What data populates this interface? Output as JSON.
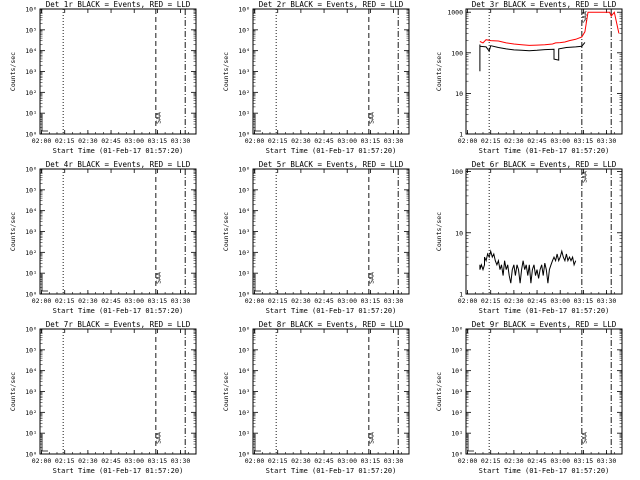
{
  "chart_data": [
    {
      "type": "line",
      "title": "Det 1r BLACK = Events, RED = LLD",
      "xlabel": "Start Time (01-Feb-17 01:57:20)",
      "ylabel": "Counts/sec",
      "log_y": true,
      "xlim": [
        "01:59",
        "03:40"
      ],
      "ylim": [
        1,
        1000000
      ],
      "x_ticks": [
        "02:00",
        "02:15",
        "02:30",
        "02:45",
        "03:00",
        "03:15",
        "03:30"
      ],
      "y_ticks": [
        "10⁰",
        "10¹",
        "10²",
        "10³",
        "10⁴",
        "10⁵",
        "10⁶"
      ],
      "markers": [
        {
          "x": "02:14",
          "style": "dotted"
        },
        {
          "x": "03:14",
          "style": "dashed"
        },
        {
          "x": "03:33",
          "style": "dash-dot"
        }
      ],
      "annotation": {
        "text": "SAA",
        "x": "03:15"
      },
      "series": []
    },
    {
      "type": "line",
      "title": "Det 2r BLACK = Events, RED = LLD",
      "xlabel": "Start Time (01-Feb-17 01:57:20)",
      "ylabel": "Counts/sec",
      "log_y": true,
      "xlim": [
        "01:59",
        "03:40"
      ],
      "ylim": [
        1,
        1000000
      ],
      "x_ticks": [
        "02:00",
        "02:15",
        "02:30",
        "02:45",
        "03:00",
        "03:15",
        "03:30"
      ],
      "y_ticks": [
        "10⁰",
        "10¹",
        "10²",
        "10³",
        "10⁴",
        "10⁵",
        "10⁶"
      ],
      "markers": [
        {
          "x": "02:14",
          "style": "dotted"
        },
        {
          "x": "03:14",
          "style": "dashed"
        },
        {
          "x": "03:33",
          "style": "dash-dot"
        }
      ],
      "annotation": {
        "text": "SAA",
        "x": "03:15"
      },
      "series": []
    },
    {
      "type": "line",
      "title": "Det 3r BLACK = Events, RED = LLD",
      "xlabel": "Start Time (01-Feb-17 01:57:20)",
      "ylabel": "Counts/sec",
      "log_y": true,
      "xlim": [
        "01:59",
        "03:40"
      ],
      "ylim": [
        1,
        1200
      ],
      "x_ticks": [
        "02:00",
        "02:15",
        "02:30",
        "02:45",
        "03:00",
        "03:15",
        "03:30"
      ],
      "y_ticks": [
        "1",
        "10",
        "100",
        "1000"
      ],
      "markers": [
        {
          "x": "02:14",
          "style": "dotted"
        },
        {
          "x": "03:14",
          "style": "dash-dot"
        },
        {
          "x": "03:33",
          "style": "dash-dot"
        }
      ],
      "annotation": {
        "text": "SAA",
        "x": "03:15"
      },
      "series": [
        {
          "color": "#ff0000",
          "points": [
            [
              "02:08",
              190
            ],
            [
              "02:10",
              175
            ],
            [
              "02:12",
              210
            ],
            [
              "02:15",
              200
            ],
            [
              "02:20",
              195
            ],
            [
              "02:25",
              175
            ],
            [
              "02:30",
              165
            ],
            [
              "02:35",
              158
            ],
            [
              "02:40",
              152
            ],
            [
              "02:45",
              155
            ],
            [
              "02:50",
              158
            ],
            [
              "02:55",
              165
            ],
            [
              "02:57",
              175
            ],
            [
              "03:00",
              178
            ],
            [
              "03:03",
              185
            ],
            [
              "03:06",
              200
            ],
            [
              "03:10",
              215
            ],
            [
              "03:14",
              245
            ],
            [
              "03:16",
              330
            ],
            [
              "03:18",
              1000
            ],
            [
              "03:25",
              1000
            ],
            [
              "03:28",
              1000
            ],
            [
              "03:32",
              1000
            ],
            [
              "03:33",
              800
            ],
            [
              "03:35",
              1000
            ],
            [
              "03:38",
              300
            ]
          ]
        },
        {
          "color": "#000000",
          "points": [
            [
              "02:08",
              160
            ],
            [
              "02:08",
              35
            ],
            [
              "02:08",
              145
            ],
            [
              "02:12",
              140
            ],
            [
              "02:13",
              125
            ],
            [
              "02:14",
              110
            ],
            [
              "02:15",
              150
            ],
            [
              "02:20",
              135
            ],
            [
              "02:25",
              125
            ],
            [
              "02:30",
              118
            ],
            [
              "02:35",
              115
            ],
            [
              "02:40",
              113
            ],
            [
              "02:45",
              115
            ],
            [
              "02:50",
              120
            ],
            [
              "02:56",
              122
            ],
            [
              "02:56",
              70
            ],
            [
              "02:59",
              66
            ],
            [
              "02:59",
              125
            ],
            [
              "03:04",
              135
            ],
            [
              "03:10",
              140
            ],
            [
              "03:14",
              145
            ],
            [
              "03:16",
              180
            ]
          ]
        }
      ]
    },
    {
      "type": "line",
      "title": "Det 4r BLACK = Events, RED = LLD",
      "xlabel": "Start Time (01-Feb-17 01:57:20)",
      "ylabel": "Counts/sec",
      "log_y": true,
      "xlim": [
        "01:59",
        "03:40"
      ],
      "ylim": [
        1,
        1000000
      ],
      "x_ticks": [
        "02:00",
        "02:15",
        "02:30",
        "02:45",
        "03:00",
        "03:15",
        "03:30"
      ],
      "y_ticks": [
        "10⁰",
        "10¹",
        "10²",
        "10³",
        "10⁴",
        "10⁵",
        "10⁶"
      ],
      "markers": [
        {
          "x": "02:14",
          "style": "dotted"
        },
        {
          "x": "03:14",
          "style": "dashed"
        },
        {
          "x": "03:33",
          "style": "dash-dot"
        }
      ],
      "annotation": {
        "text": "SAA",
        "x": "03:15"
      },
      "series": []
    },
    {
      "type": "line",
      "title": "Det 5r BLACK = Events, RED = LLD",
      "xlabel": "Start Time (01-Feb-17 01:57:20)",
      "ylabel": "Counts/sec",
      "log_y": true,
      "xlim": [
        "01:59",
        "03:40"
      ],
      "ylim": [
        1,
        1000000
      ],
      "x_ticks": [
        "02:00",
        "02:15",
        "02:30",
        "02:45",
        "03:00",
        "03:15",
        "03:30"
      ],
      "y_ticks": [
        "10⁰",
        "10¹",
        "10²",
        "10³",
        "10⁴",
        "10⁵",
        "10⁶"
      ],
      "markers": [
        {
          "x": "02:14",
          "style": "dotted"
        },
        {
          "x": "03:14",
          "style": "dashed"
        },
        {
          "x": "03:33",
          "style": "dash-dot"
        }
      ],
      "annotation": {
        "text": "SAA",
        "x": "03:15"
      },
      "series": []
    },
    {
      "type": "line",
      "title": "Det 6r BLACK = Events, RED = LLD",
      "xlabel": "Start Time (01-Feb-17 01:57:20)",
      "ylabel": "Counts/sec",
      "log_y": true,
      "xlim": [
        "01:59",
        "03:40"
      ],
      "ylim": [
        1,
        110
      ],
      "x_ticks": [
        "02:00",
        "02:15",
        "02:30",
        "02:45",
        "03:00",
        "03:15",
        "03:30"
      ],
      "y_ticks": [
        "1",
        "10",
        "100"
      ],
      "markers": [
        {
          "x": "02:14",
          "style": "dotted"
        },
        {
          "x": "03:14",
          "style": "dash-dot"
        },
        {
          "x": "03:33",
          "style": "dash-dot"
        }
      ],
      "annotation": {
        "text": "SAA",
        "x": "03:15"
      },
      "series": [
        {
          "color": "#000000",
          "points": [
            [
              "02:08",
              3
            ],
            [
              "02:08",
              2.5
            ],
            [
              "02:09",
              3
            ],
            [
              "02:10",
              2.5
            ],
            [
              "02:11",
              3
            ],
            [
              "02:11",
              4
            ],
            [
              "02:12",
              3.5
            ],
            [
              "02:13",
              4.5
            ],
            [
              "02:14",
              4
            ],
            [
              "02:15",
              5
            ],
            [
              "02:16",
              4
            ],
            [
              "02:17",
              4.5
            ],
            [
              "02:18",
              3.5
            ],
            [
              "02:19",
              3
            ],
            [
              "02:20",
              3.5
            ],
            [
              "02:21",
              2.5
            ],
            [
              "02:22",
              3
            ],
            [
              "02:23",
              2
            ],
            [
              "02:24",
              3.5
            ],
            [
              "02:25",
              2.5
            ],
            [
              "02:26",
              3
            ],
            [
              "02:27",
              2
            ],
            [
              "02:28",
              1.5
            ],
            [
              "02:29",
              2.5
            ],
            [
              "02:30",
              3
            ],
            [
              "02:31",
              2
            ],
            [
              "02:32",
              3
            ],
            [
              "02:33",
              2.5
            ],
            [
              "02:34",
              1.5
            ],
            [
              "02:35",
              2.5
            ],
            [
              "02:36",
              3.5
            ],
            [
              "02:37",
              2.5
            ],
            [
              "02:38",
              3
            ],
            [
              "02:39",
              2
            ],
            [
              "02:40",
              3
            ],
            [
              "02:41",
              1.5
            ],
            [
              "02:42",
              2.5
            ],
            [
              "02:43",
              3
            ],
            [
              "02:44",
              2
            ],
            [
              "02:45",
              2.5
            ],
            [
              "02:46",
              1.8
            ],
            [
              "02:47",
              2.5
            ],
            [
              "02:48",
              3
            ],
            [
              "02:49",
              2
            ],
            [
              "02:50",
              3.2
            ],
            [
              "02:51",
              2.5
            ],
            [
              "02:52",
              1.5
            ],
            [
              "02:53",
              2.5
            ],
            [
              "02:54",
              3
            ],
            [
              "02:55",
              3.5
            ],
            [
              "02:56",
              4
            ],
            [
              "02:57",
              3.5
            ],
            [
              "02:58",
              4.5
            ],
            [
              "02:59",
              3.5
            ],
            [
              "03:00",
              4
            ],
            [
              "03:01",
              5
            ],
            [
              "03:02",
              4
            ],
            [
              "03:03",
              3.5
            ],
            [
              "03:04",
              4.5
            ],
            [
              "03:05",
              3.5
            ],
            [
              "03:06",
              4
            ],
            [
              "03:07",
              3.5
            ],
            [
              "03:08",
              4
            ],
            [
              "03:09",
              3
            ],
            [
              "03:10",
              3.5
            ]
          ]
        }
      ]
    },
    {
      "type": "line",
      "title": "Det 7r BLACK = Events, RED = LLD",
      "xlabel": "Start Time (01-Feb-17 01:57:20)",
      "ylabel": "Counts/sec",
      "log_y": true,
      "xlim": [
        "01:59",
        "03:40"
      ],
      "ylim": [
        1,
        1000000
      ],
      "x_ticks": [
        "02:00",
        "02:15",
        "02:30",
        "02:45",
        "03:00",
        "03:15",
        "03:30"
      ],
      "y_ticks": [
        "10⁰",
        "10¹",
        "10²",
        "10³",
        "10⁴",
        "10⁵",
        "10⁶"
      ],
      "markers": [
        {
          "x": "02:14",
          "style": "dotted"
        },
        {
          "x": "03:14",
          "style": "dashed"
        },
        {
          "x": "03:33",
          "style": "dash-dot"
        }
      ],
      "annotation": {
        "text": "SAA",
        "x": "03:15"
      },
      "series": []
    },
    {
      "type": "line",
      "title": "Det 8r BLACK = Events, RED = LLD",
      "xlabel": "Start Time (01-Feb-17 01:57:20)",
      "ylabel": "Counts/sec",
      "log_y": true,
      "xlim": [
        "01:59",
        "03:40"
      ],
      "ylim": [
        1,
        1000000
      ],
      "x_ticks": [
        "02:00",
        "02:15",
        "02:30",
        "02:45",
        "03:00",
        "03:15",
        "03:30"
      ],
      "y_ticks": [
        "10⁰",
        "10¹",
        "10²",
        "10³",
        "10⁴",
        "10⁵",
        "10⁶"
      ],
      "markers": [
        {
          "x": "02:14",
          "style": "dotted"
        },
        {
          "x": "03:14",
          "style": "dashed"
        },
        {
          "x": "03:33",
          "style": "dash-dot"
        }
      ],
      "annotation": {
        "text": "SAA",
        "x": "03:15"
      },
      "series": []
    },
    {
      "type": "line",
      "title": "Det 9r BLACK = Events, RED = LLD",
      "xlabel": "Start Time (01-Feb-17 01:57:20)",
      "ylabel": "Counts/sec",
      "log_y": true,
      "xlim": [
        "01:59",
        "03:40"
      ],
      "ylim": [
        1,
        1000000
      ],
      "x_ticks": [
        "02:00",
        "02:15",
        "02:30",
        "02:45",
        "03:00",
        "03:15",
        "03:30"
      ],
      "y_ticks": [
        "10⁰",
        "10¹",
        "10²",
        "10³",
        "10⁴",
        "10⁵",
        "10⁶"
      ],
      "markers": [
        {
          "x": "02:14",
          "style": "dotted"
        },
        {
          "x": "03:14",
          "style": "dash-dot"
        },
        {
          "x": "03:33",
          "style": "dash-dot"
        }
      ],
      "annotation": {
        "text": "SAA",
        "x": "03:15"
      },
      "series": []
    }
  ]
}
